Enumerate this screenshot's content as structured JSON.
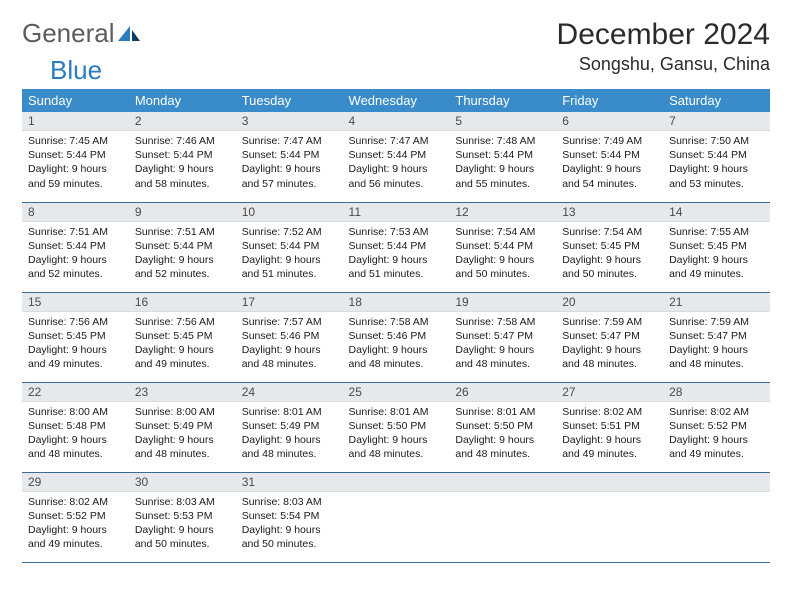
{
  "brand": {
    "part1": "General",
    "part2": "Blue"
  },
  "title": "December 2024",
  "location": "Songshu, Gansu, China",
  "colors": {
    "header_bg": "#3a8bc9",
    "header_text": "#ffffff",
    "daynum_bg": "#e6e9eb",
    "row_border": "#3a6b96",
    "logo_gray": "#5c5c5c",
    "logo_blue": "#2b7bbf"
  },
  "weekdays": [
    "Sunday",
    "Monday",
    "Tuesday",
    "Wednesday",
    "Thursday",
    "Friday",
    "Saturday"
  ],
  "days": [
    {
      "n": "1",
      "sr": "7:45 AM",
      "ss": "5:44 PM",
      "dl": "9 hours and 59 minutes."
    },
    {
      "n": "2",
      "sr": "7:46 AM",
      "ss": "5:44 PM",
      "dl": "9 hours and 58 minutes."
    },
    {
      "n": "3",
      "sr": "7:47 AM",
      "ss": "5:44 PM",
      "dl": "9 hours and 57 minutes."
    },
    {
      "n": "4",
      "sr": "7:47 AM",
      "ss": "5:44 PM",
      "dl": "9 hours and 56 minutes."
    },
    {
      "n": "5",
      "sr": "7:48 AM",
      "ss": "5:44 PM",
      "dl": "9 hours and 55 minutes."
    },
    {
      "n": "6",
      "sr": "7:49 AM",
      "ss": "5:44 PM",
      "dl": "9 hours and 54 minutes."
    },
    {
      "n": "7",
      "sr": "7:50 AM",
      "ss": "5:44 PM",
      "dl": "9 hours and 53 minutes."
    },
    {
      "n": "8",
      "sr": "7:51 AM",
      "ss": "5:44 PM",
      "dl": "9 hours and 52 minutes."
    },
    {
      "n": "9",
      "sr": "7:51 AM",
      "ss": "5:44 PM",
      "dl": "9 hours and 52 minutes."
    },
    {
      "n": "10",
      "sr": "7:52 AM",
      "ss": "5:44 PM",
      "dl": "9 hours and 51 minutes."
    },
    {
      "n": "11",
      "sr": "7:53 AM",
      "ss": "5:44 PM",
      "dl": "9 hours and 51 minutes."
    },
    {
      "n": "12",
      "sr": "7:54 AM",
      "ss": "5:44 PM",
      "dl": "9 hours and 50 minutes."
    },
    {
      "n": "13",
      "sr": "7:54 AM",
      "ss": "5:45 PM",
      "dl": "9 hours and 50 minutes."
    },
    {
      "n": "14",
      "sr": "7:55 AM",
      "ss": "5:45 PM",
      "dl": "9 hours and 49 minutes."
    },
    {
      "n": "15",
      "sr": "7:56 AM",
      "ss": "5:45 PM",
      "dl": "9 hours and 49 minutes."
    },
    {
      "n": "16",
      "sr": "7:56 AM",
      "ss": "5:45 PM",
      "dl": "9 hours and 49 minutes."
    },
    {
      "n": "17",
      "sr": "7:57 AM",
      "ss": "5:46 PM",
      "dl": "9 hours and 48 minutes."
    },
    {
      "n": "18",
      "sr": "7:58 AM",
      "ss": "5:46 PM",
      "dl": "9 hours and 48 minutes."
    },
    {
      "n": "19",
      "sr": "7:58 AM",
      "ss": "5:47 PM",
      "dl": "9 hours and 48 minutes."
    },
    {
      "n": "20",
      "sr": "7:59 AM",
      "ss": "5:47 PM",
      "dl": "9 hours and 48 minutes."
    },
    {
      "n": "21",
      "sr": "7:59 AM",
      "ss": "5:47 PM",
      "dl": "9 hours and 48 minutes."
    },
    {
      "n": "22",
      "sr": "8:00 AM",
      "ss": "5:48 PM",
      "dl": "9 hours and 48 minutes."
    },
    {
      "n": "23",
      "sr": "8:00 AM",
      "ss": "5:49 PM",
      "dl": "9 hours and 48 minutes."
    },
    {
      "n": "24",
      "sr": "8:01 AM",
      "ss": "5:49 PM",
      "dl": "9 hours and 48 minutes."
    },
    {
      "n": "25",
      "sr": "8:01 AM",
      "ss": "5:50 PM",
      "dl": "9 hours and 48 minutes."
    },
    {
      "n": "26",
      "sr": "8:01 AM",
      "ss": "5:50 PM",
      "dl": "9 hours and 48 minutes."
    },
    {
      "n": "27",
      "sr": "8:02 AM",
      "ss": "5:51 PM",
      "dl": "9 hours and 49 minutes."
    },
    {
      "n": "28",
      "sr": "8:02 AM",
      "ss": "5:52 PM",
      "dl": "9 hours and 49 minutes."
    },
    {
      "n": "29",
      "sr": "8:02 AM",
      "ss": "5:52 PM",
      "dl": "9 hours and 49 minutes."
    },
    {
      "n": "30",
      "sr": "8:03 AM",
      "ss": "5:53 PM",
      "dl": "9 hours and 50 minutes."
    },
    {
      "n": "31",
      "sr": "8:03 AM",
      "ss": "5:54 PM",
      "dl": "9 hours and 50 minutes."
    }
  ],
  "labels": {
    "sunrise": "Sunrise:",
    "sunset": "Sunset:",
    "daylight": "Daylight:"
  }
}
